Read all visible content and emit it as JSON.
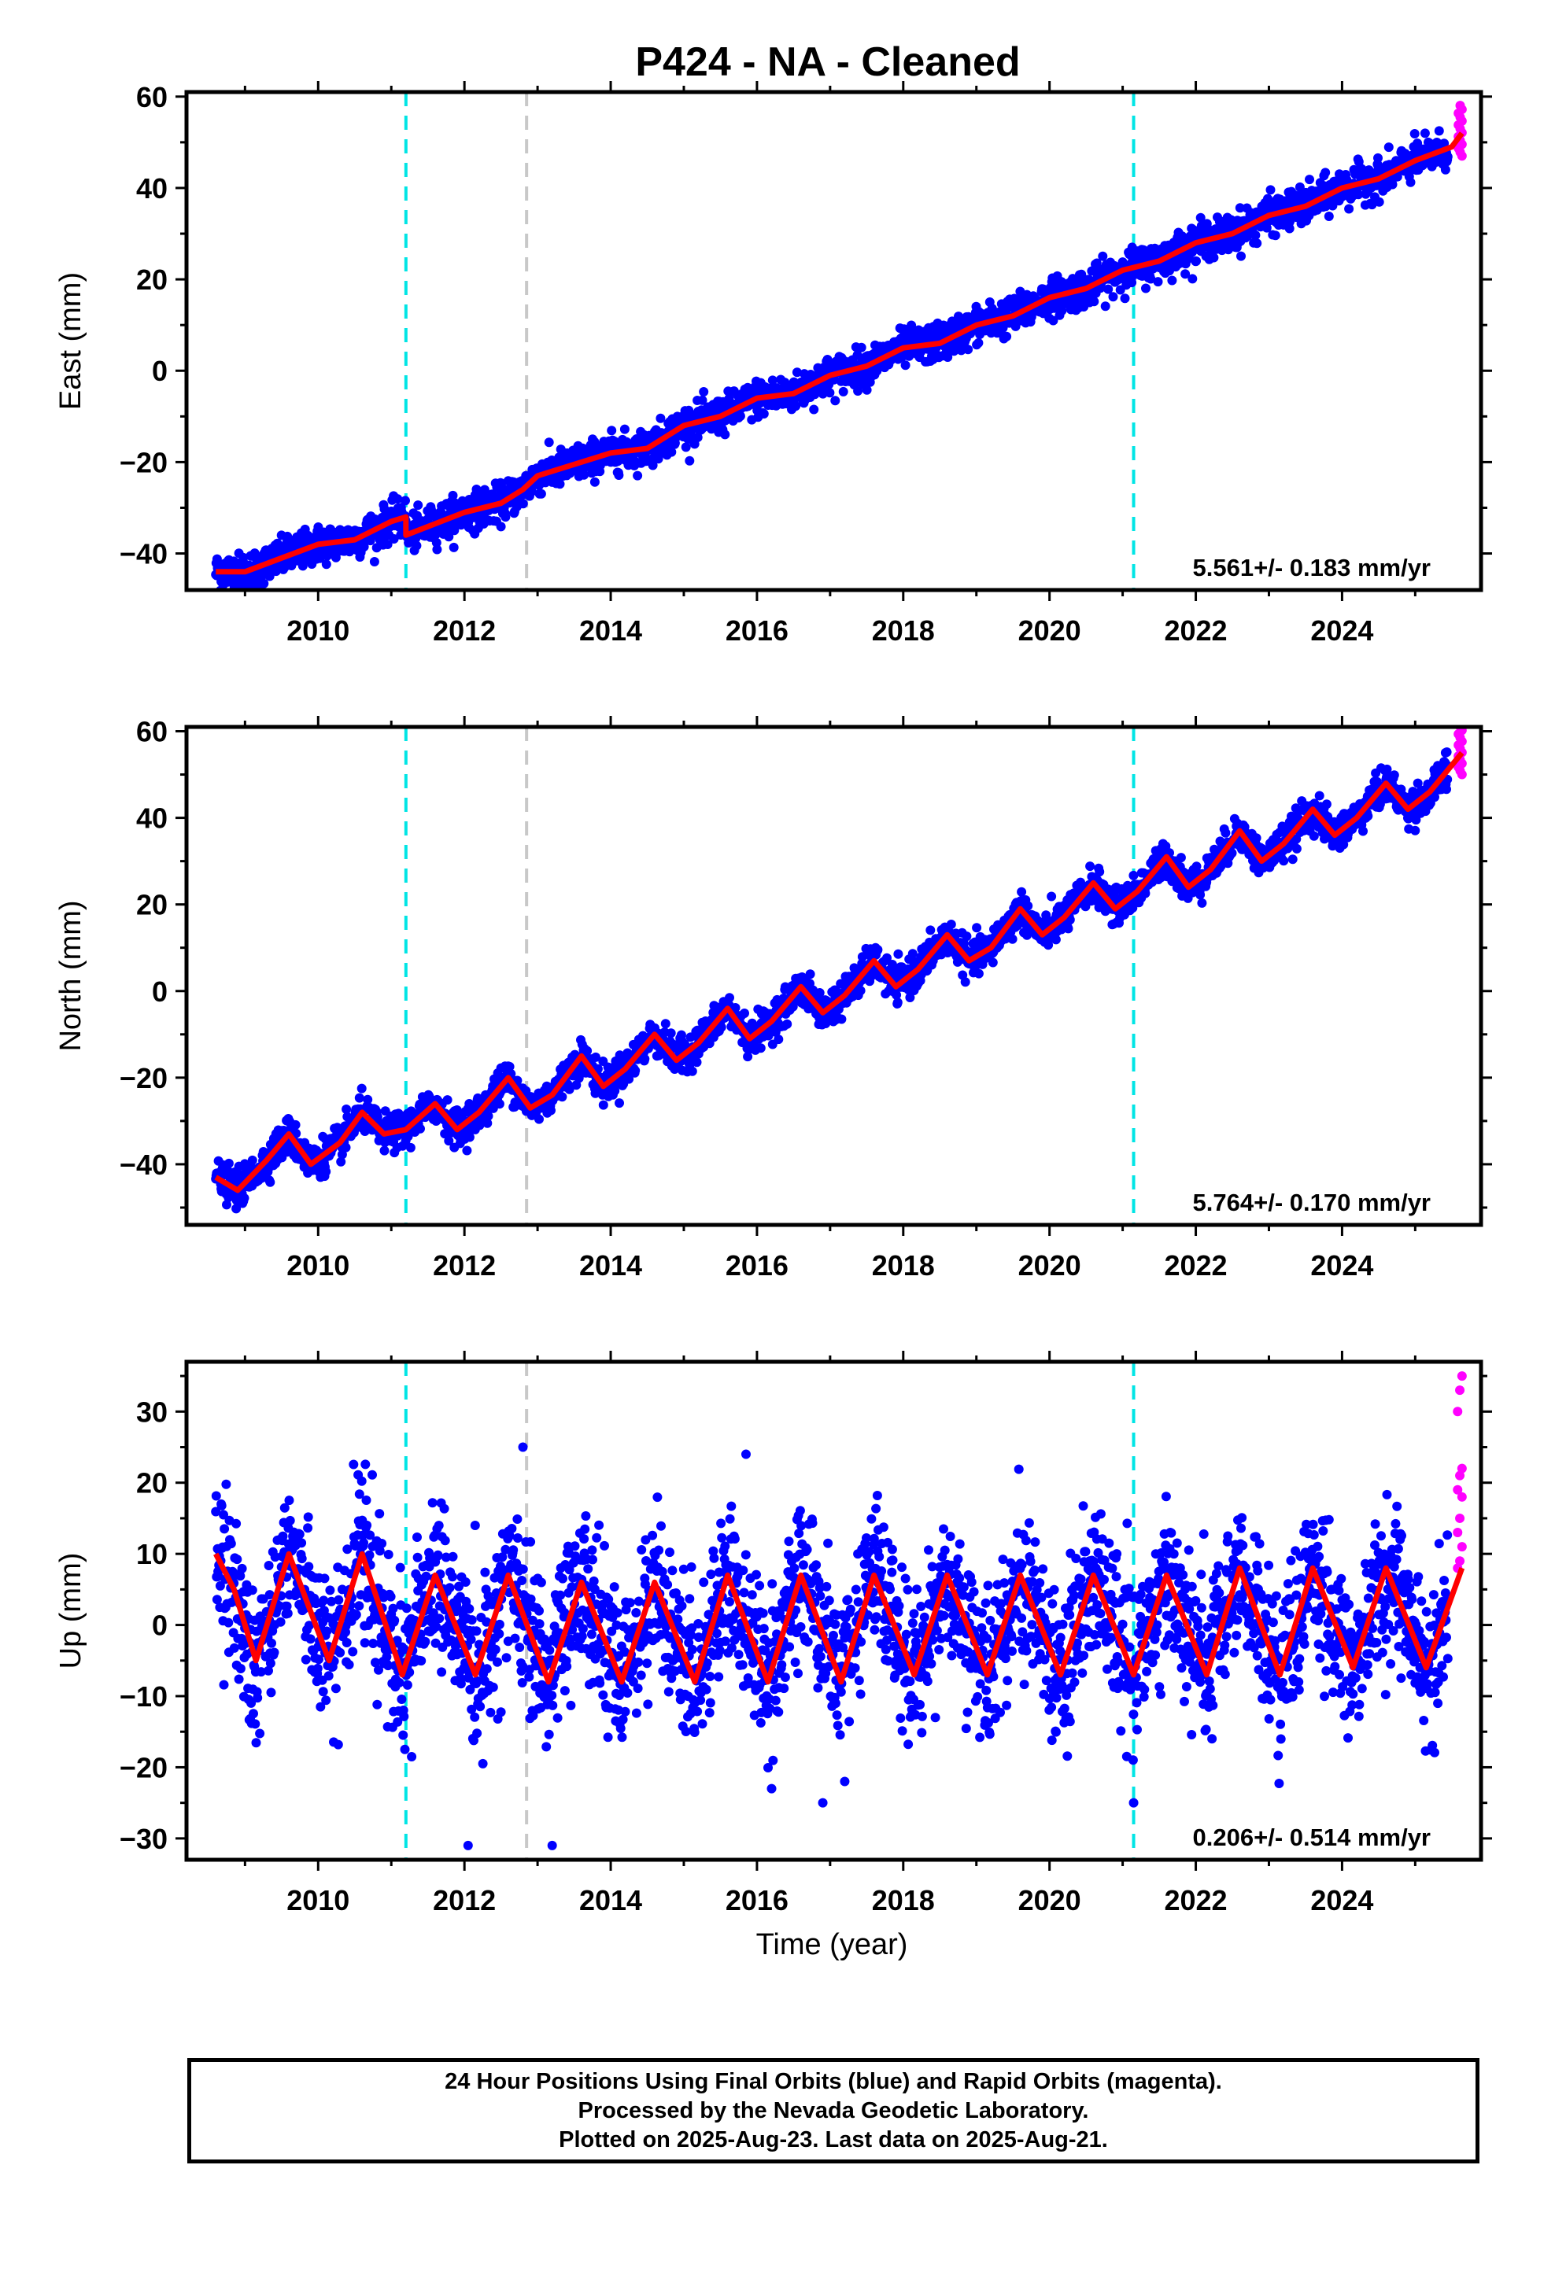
{
  "title": "P424  - NA - Cleaned",
  "xlabel": "Time (year)",
  "caption": {
    "line1": "24 Hour Positions Using Final Orbits (blue) and Rapid Orbits (magenta).",
    "line2": "Processed by the Nevada Geodetic Laboratory.",
    "line3": "Plotted on 2025-Aug-23. Last data on 2025-Aug-21."
  },
  "colors": {
    "final_orbits": "#0000ff",
    "rapid_orbits": "#ff00ff",
    "model_fit": "#ff0000",
    "equipment_change": "#00e5e5",
    "other_event": "#c8c8c8"
  },
  "chart_data": [
    {
      "type": "scatter",
      "component": "east",
      "ylabel": "East (mm)",
      "rate_text": "5.561+/- 0.183 mm/yr",
      "xlim": [
        2008.2,
        2025.9
      ],
      "ylim": [
        -48,
        61
      ],
      "xticks": [
        2010,
        2012,
        2014,
        2016,
        2018,
        2020,
        2022,
        2024
      ],
      "yticks": [
        -40,
        -20,
        0,
        20,
        40,
        60
      ],
      "data_start": 2008.6,
      "final_end": 2025.45,
      "rapid_range": [
        2025.45,
        2025.64
      ],
      "rate_mm_per_yr": 5.561,
      "model_points": [
        [
          2008.6,
          -44
        ],
        [
          2009.0,
          -44
        ],
        [
          2009.5,
          -41
        ],
        [
          2010.0,
          -38
        ],
        [
          2010.5,
          -37
        ],
        [
          2011.0,
          -33
        ],
        [
          2011.2,
          -32
        ],
        [
          2011.2,
          -36
        ],
        [
          2012.0,
          -31
        ],
        [
          2012.5,
          -29
        ],
        [
          2012.8,
          -26
        ],
        [
          2013.0,
          -23
        ],
        [
          2014.0,
          -18
        ],
        [
          2014.5,
          -17
        ],
        [
          2015.0,
          -12
        ],
        [
          2015.5,
          -10
        ],
        [
          2016.0,
          -6
        ],
        [
          2016.5,
          -5
        ],
        [
          2017.0,
          -1
        ],
        [
          2017.5,
          1
        ],
        [
          2018.0,
          5
        ],
        [
          2018.5,
          6
        ],
        [
          2019.0,
          10
        ],
        [
          2019.5,
          12
        ],
        [
          2020.0,
          16
        ],
        [
          2020.5,
          18
        ],
        [
          2021.0,
          22
        ],
        [
          2021.5,
          24
        ],
        [
          2022.0,
          28
        ],
        [
          2022.5,
          30
        ],
        [
          2023.0,
          34
        ],
        [
          2023.5,
          36
        ],
        [
          2024.0,
          40
        ],
        [
          2024.5,
          42
        ],
        [
          2025.0,
          46
        ],
        [
          2025.5,
          49
        ],
        [
          2025.64,
          52
        ]
      ],
      "offsets": [
        {
          "x": 2011.2,
          "style": "equipment_change"
        },
        {
          "x": 2012.85,
          "style": "other_event"
        },
        {
          "x": 2021.15,
          "style": "equipment_change"
        }
      ]
    },
    {
      "type": "scatter",
      "component": "north",
      "ylabel": "North (mm)",
      "rate_text": "5.764+/- 0.170 mm/yr",
      "xlim": [
        2008.2,
        2025.9
      ],
      "ylim": [
        -54,
        61
      ],
      "xticks": [
        2010,
        2012,
        2014,
        2016,
        2018,
        2020,
        2022,
        2024
      ],
      "yticks": [
        -40,
        -20,
        0,
        20,
        40,
        60
      ],
      "data_start": 2008.6,
      "final_end": 2025.45,
      "rapid_range": [
        2025.45,
        2025.64
      ],
      "rate_mm_per_yr": 5.764,
      "model_points": [
        [
          2008.6,
          -43
        ],
        [
          2008.9,
          -46
        ],
        [
          2009.3,
          -39
        ],
        [
          2009.6,
          -33
        ],
        [
          2009.9,
          -40
        ],
        [
          2010.3,
          -35
        ],
        [
          2010.6,
          -28
        ],
        [
          2010.9,
          -33
        ],
        [
          2011.2,
          -32
        ],
        [
          2011.6,
          -26
        ],
        [
          2011.9,
          -32
        ],
        [
          2012.2,
          -28
        ],
        [
          2012.6,
          -20
        ],
        [
          2012.9,
          -27
        ],
        [
          2013.2,
          -24
        ],
        [
          2013.6,
          -15
        ],
        [
          2013.9,
          -22
        ],
        [
          2014.2,
          -18
        ],
        [
          2014.6,
          -10
        ],
        [
          2014.9,
          -16
        ],
        [
          2015.2,
          -12
        ],
        [
          2015.6,
          -4
        ],
        [
          2015.9,
          -11
        ],
        [
          2016.2,
          -7
        ],
        [
          2016.6,
          1
        ],
        [
          2016.9,
          -5
        ],
        [
          2017.2,
          -1
        ],
        [
          2017.6,
          7
        ],
        [
          2017.9,
          1
        ],
        [
          2018.2,
          5
        ],
        [
          2018.6,
          13
        ],
        [
          2018.9,
          7
        ],
        [
          2019.2,
          10
        ],
        [
          2019.6,
          19
        ],
        [
          2019.9,
          13
        ],
        [
          2020.2,
          17
        ],
        [
          2020.6,
          25
        ],
        [
          2020.9,
          19
        ],
        [
          2021.2,
          23
        ],
        [
          2021.6,
          31
        ],
        [
          2021.9,
          24
        ],
        [
          2022.2,
          28
        ],
        [
          2022.6,
          37
        ],
        [
          2022.9,
          30
        ],
        [
          2023.2,
          34
        ],
        [
          2023.6,
          42
        ],
        [
          2023.9,
          36
        ],
        [
          2024.2,
          40
        ],
        [
          2024.6,
          48
        ],
        [
          2024.9,
          42
        ],
        [
          2025.2,
          46
        ],
        [
          2025.64,
          55
        ]
      ],
      "offsets": [
        {
          "x": 2011.2,
          "style": "equipment_change"
        },
        {
          "x": 2012.85,
          "style": "other_event"
        },
        {
          "x": 2021.15,
          "style": "equipment_change"
        }
      ]
    },
    {
      "type": "scatter",
      "component": "up",
      "ylabel": "Up (mm)",
      "rate_text": "0.206+/- 0.514 mm/yr",
      "xlim": [
        2008.2,
        2025.9
      ],
      "ylim": [
        -33,
        37
      ],
      "xticks": [
        2010,
        2012,
        2014,
        2016,
        2018,
        2020,
        2022,
        2024
      ],
      "yticks": [
        -30,
        -20,
        -10,
        0,
        10,
        20,
        30
      ],
      "data_start": 2008.6,
      "final_end": 2025.45,
      "rapid_range": [
        2025.45,
        2025.64
      ],
      "rate_mm_per_yr": 0.206,
      "model_points": [
        [
          2008.6,
          10
        ],
        [
          2008.85,
          5
        ],
        [
          2009.15,
          -5
        ],
        [
          2009.6,
          10
        ],
        [
          2010.15,
          -5
        ],
        [
          2010.6,
          10
        ],
        [
          2011.15,
          -7
        ],
        [
          2011.6,
          7
        ],
        [
          2012.15,
          -7
        ],
        [
          2012.6,
          7
        ],
        [
          2013.15,
          -8
        ],
        [
          2013.6,
          6
        ],
        [
          2014.15,
          -8
        ],
        [
          2014.6,
          6
        ],
        [
          2015.15,
          -8
        ],
        [
          2015.6,
          7
        ],
        [
          2016.15,
          -8
        ],
        [
          2016.6,
          7
        ],
        [
          2017.15,
          -8
        ],
        [
          2017.6,
          7
        ],
        [
          2018.15,
          -7
        ],
        [
          2018.6,
          7
        ],
        [
          2019.15,
          -7
        ],
        [
          2019.6,
          7
        ],
        [
          2020.15,
          -7
        ],
        [
          2020.6,
          7
        ],
        [
          2021.15,
          -7
        ],
        [
          2021.6,
          7
        ],
        [
          2022.15,
          -7
        ],
        [
          2022.6,
          8
        ],
        [
          2023.15,
          -7
        ],
        [
          2023.6,
          8
        ],
        [
          2024.15,
          -6
        ],
        [
          2024.6,
          8
        ],
        [
          2025.15,
          -6
        ],
        [
          2025.64,
          8
        ]
      ],
      "outliers": [
        [
          2012.05,
          -31
        ],
        [
          2013.2,
          -31
        ],
        [
          2012.8,
          25
        ],
        [
          2015.85,
          24
        ],
        [
          2016.2,
          -23
        ],
        [
          2016.9,
          -25
        ],
        [
          2017.2,
          -22
        ],
        [
          2021.15,
          -25
        ]
      ],
      "rapid_points": [
        35,
        33,
        30,
        22,
        21,
        19,
        18,
        15,
        13,
        11,
        9,
        8
      ],
      "offsets": [
        {
          "x": 2011.2,
          "style": "equipment_change"
        },
        {
          "x": 2012.85,
          "style": "other_event"
        },
        {
          "x": 2021.15,
          "style": "equipment_change"
        }
      ]
    }
  ]
}
